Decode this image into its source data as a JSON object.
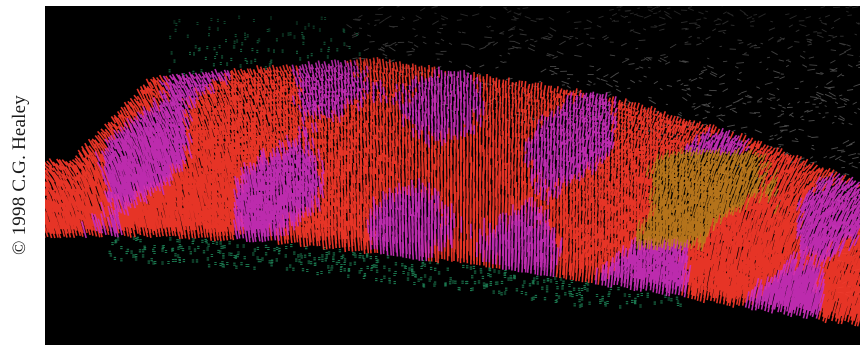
{
  "credit": {
    "text": "© 1998 C.G. Healey"
  },
  "visualization": {
    "palette": {
      "background": "#000000",
      "terrain": "#8a8a8a",
      "red": "#ff3a2a",
      "magenta": "#d030c0",
      "orange": "#c8801e",
      "green": "#1f8a5a"
    }
  }
}
